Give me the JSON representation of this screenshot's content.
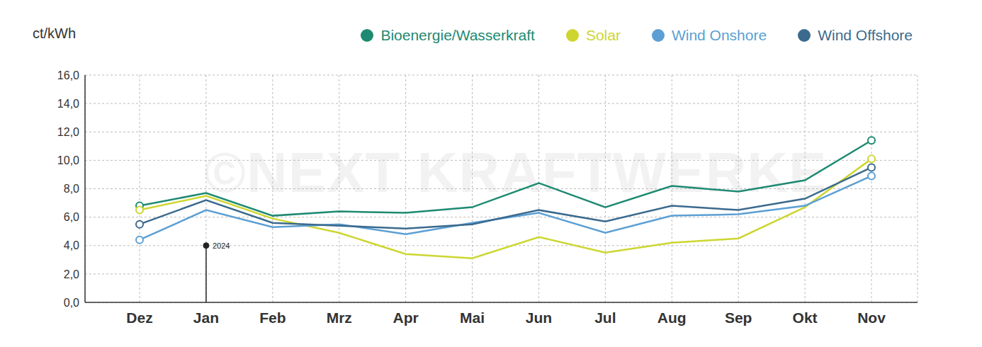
{
  "chart_data": {
    "type": "line",
    "y_label": "ct/kWh",
    "watermark": "©NEXT KRAFTWERKE",
    "categories": [
      "Dez",
      "Jan",
      "Feb",
      "Mrz",
      "Apr",
      "Mai",
      "Jun",
      "Jul",
      "Aug",
      "Sep",
      "Okt",
      "Nov"
    ],
    "series": [
      {
        "name": "Bioenergie/Wasserkraft",
        "color": "#1e8a72",
        "values": [
          6.8,
          7.7,
          6.1,
          6.4,
          6.3,
          6.7,
          8.4,
          6.7,
          8.2,
          7.8,
          8.6,
          11.4
        ]
      },
      {
        "name": "Solar",
        "color": "#cdd630",
        "values": [
          6.5,
          7.5,
          5.9,
          4.9,
          3.4,
          3.1,
          4.6,
          3.5,
          4.2,
          4.5,
          6.7,
          10.1
        ]
      },
      {
        "name": "Wind Onshore",
        "color": "#5b9fd4",
        "values": [
          4.4,
          6.5,
          5.3,
          5.5,
          4.8,
          5.6,
          6.3,
          4.9,
          6.1,
          6.2,
          6.8,
          8.9
        ]
      },
      {
        "name": "Wind Offshore",
        "color": "#3b6a8e",
        "values": [
          5.5,
          7.2,
          5.6,
          5.4,
          5.2,
          5.5,
          6.5,
          5.7,
          6.8,
          6.5,
          7.3,
          9.5
        ]
      }
    ],
    "ylim": [
      0,
      16
    ],
    "yticks": [
      {
        "value": 0,
        "label": "0,0"
      },
      {
        "value": 2,
        "label": "2,0"
      },
      {
        "value": 4,
        "label": "4,0"
      },
      {
        "value": 6,
        "label": "6,0"
      },
      {
        "value": 8,
        "label": "8,0"
      },
      {
        "value": 10,
        "label": "10,0"
      },
      {
        "value": 12,
        "label": "12,0"
      },
      {
        "value": 14,
        "label": "14,0"
      },
      {
        "value": 16,
        "label": "16,0"
      }
    ],
    "annotations": [
      {
        "text": "2024",
        "x": "Jan",
        "y": 4
      }
    ],
    "grid": true,
    "legend": "top-right",
    "marker": "endpoints"
  }
}
